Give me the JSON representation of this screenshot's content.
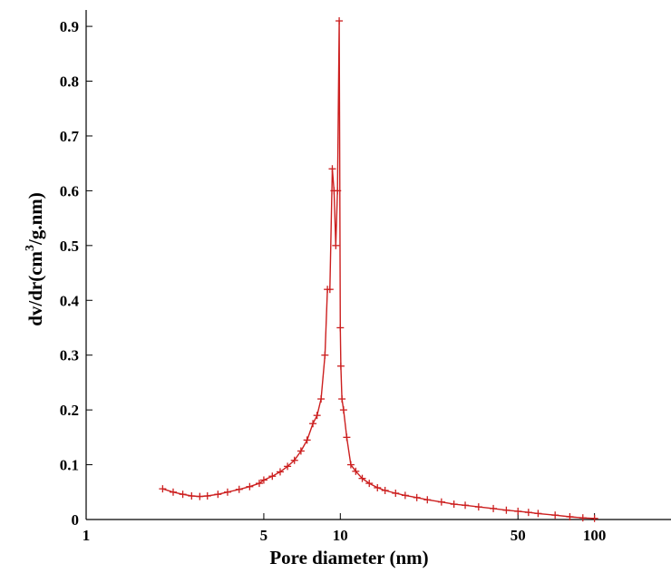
{
  "chart_data": {
    "type": "line",
    "title": "",
    "xlabel": "Pore diameter (nm)",
    "ylabel_parts": [
      "dv/dr(cm",
      "3",
      "/g.nm)"
    ],
    "x_scale": "log",
    "xlim": [
      1,
      200
    ],
    "ylim": [
      0,
      0.92
    ],
    "x_ticks": [
      1,
      5,
      10,
      50,
      100
    ],
    "x_tick_labels": [
      "1",
      "5",
      "10",
      "50",
      "100"
    ],
    "y_ticks": [
      0,
      0.1,
      0.2,
      0.3,
      0.4,
      0.5,
      0.6,
      0.7,
      0.8,
      0.9
    ],
    "y_tick_labels": [
      "0",
      "0.1",
      "0.2",
      "0.3",
      "0.4",
      "0.5",
      "0.6",
      "0.7",
      "0.8",
      "0.9"
    ],
    "grid": false,
    "line_color": "#cc1f1f",
    "series": [
      {
        "x": [
          2.0,
          2.2,
          2.4,
          2.6,
          2.8,
          3.0,
          3.3,
          3.6,
          4.0,
          4.4,
          4.8,
          5.0,
          5.4,
          5.8,
          6.2,
          6.6,
          7.0,
          7.4,
          7.8,
          8.1,
          8.4,
          8.7,
          8.9,
          9.1,
          9.3,
          9.45,
          9.6,
          9.75,
          9.9,
          10.0,
          10.05,
          10.15,
          10.3,
          10.6,
          11.0,
          11.5,
          12.2,
          13.0,
          14.0,
          15.0,
          16.5,
          18.0,
          20.0,
          22.0,
          25.0,
          28.0,
          31.0,
          35.0,
          40.0,
          45.0,
          50.0,
          55.0,
          60.0,
          70.0,
          80.0,
          90.0,
          100.0
        ],
        "y": [
          0.056,
          0.05,
          0.046,
          0.043,
          0.042,
          0.043,
          0.046,
          0.05,
          0.055,
          0.06,
          0.066,
          0.072,
          0.079,
          0.087,
          0.097,
          0.108,
          0.125,
          0.145,
          0.175,
          0.19,
          0.22,
          0.3,
          0.42,
          0.42,
          0.64,
          0.6,
          0.5,
          0.6,
          0.91,
          0.35,
          0.28,
          0.22,
          0.2,
          0.15,
          0.1,
          0.088,
          0.075,
          0.066,
          0.058,
          0.053,
          0.048,
          0.044,
          0.04,
          0.036,
          0.032,
          0.028,
          0.026,
          0.023,
          0.02,
          0.017,
          0.015,
          0.013,
          0.011,
          0.008,
          0.005,
          0.003,
          0.002
        ]
      }
    ]
  }
}
